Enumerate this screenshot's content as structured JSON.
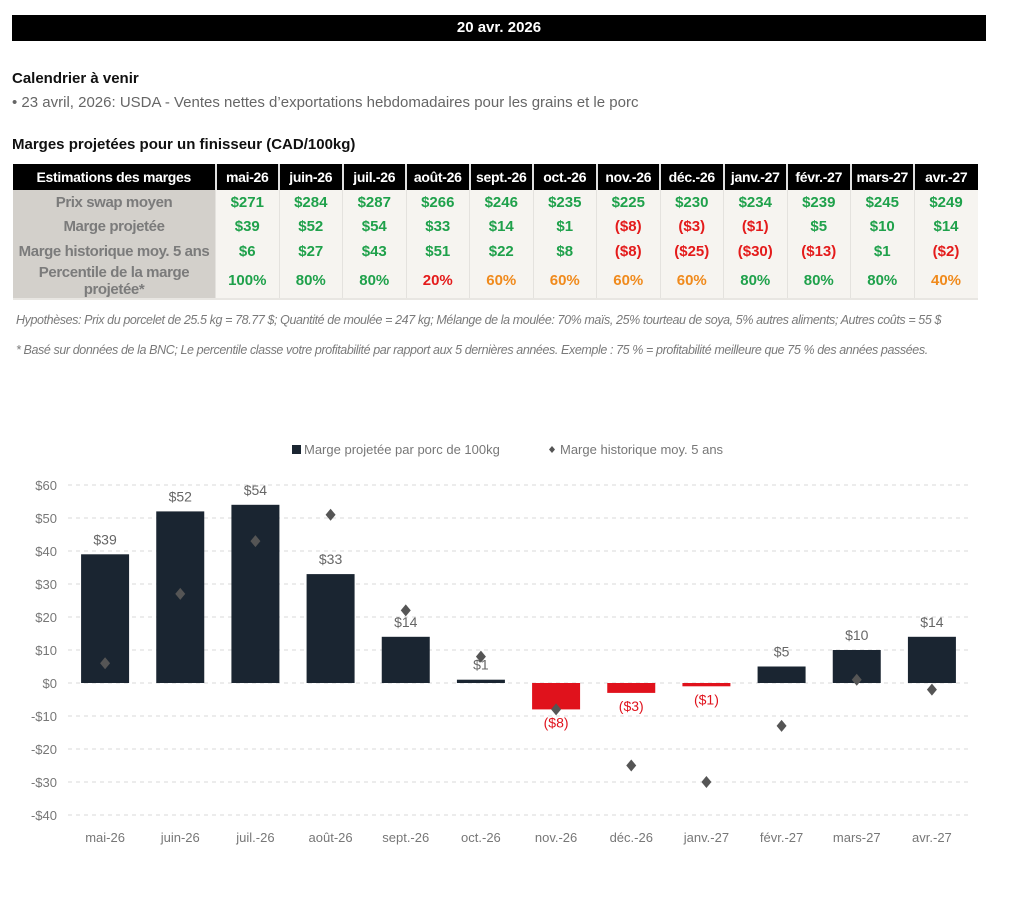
{
  "header": {
    "date": "20 avr. 2026"
  },
  "calendar": {
    "title": "Calendrier à venir",
    "items": [
      "• 23 avril, 2026: USDA - Ventes nettes d’exportations hebdomadaires pour les grains et le porc"
    ]
  },
  "table": {
    "title": "Marges projetées pour un finisseur (CAD/100kg)",
    "header_label": "Estimations des marges",
    "months": [
      "mai-26",
      "juin-26",
      "juil.-26",
      "août-26",
      "sept.-26",
      "oct.-26",
      "nov.-26",
      "déc.-26",
      "janv.-27",
      "févr.-27",
      "mars-27",
      "avr.-27"
    ],
    "rows": [
      {
        "label": "Prix swap moyen",
        "cells": [
          {
            "text": "$271",
            "color": "green"
          },
          {
            "text": "$284",
            "color": "green"
          },
          {
            "text": "$287",
            "color": "green"
          },
          {
            "text": "$266",
            "color": "green"
          },
          {
            "text": "$246",
            "color": "green"
          },
          {
            "text": "$235",
            "color": "green"
          },
          {
            "text": "$225",
            "color": "green"
          },
          {
            "text": "$230",
            "color": "green"
          },
          {
            "text": "$234",
            "color": "green"
          },
          {
            "text": "$239",
            "color": "green"
          },
          {
            "text": "$245",
            "color": "green"
          },
          {
            "text": "$249",
            "color": "green"
          }
        ]
      },
      {
        "label": "Marge projetée",
        "cells": [
          {
            "text": "$39",
            "color": "green"
          },
          {
            "text": "$52",
            "color": "green"
          },
          {
            "text": "$54",
            "color": "green"
          },
          {
            "text": "$33",
            "color": "green"
          },
          {
            "text": "$14",
            "color": "green"
          },
          {
            "text": "$1",
            "color": "green"
          },
          {
            "text": "($8)",
            "color": "red"
          },
          {
            "text": "($3)",
            "color": "red"
          },
          {
            "text": "($1)",
            "color": "red"
          },
          {
            "text": "$5",
            "color": "green"
          },
          {
            "text": "$10",
            "color": "green"
          },
          {
            "text": "$14",
            "color": "green"
          }
        ]
      },
      {
        "label": "Marge historique moy. 5 ans",
        "cells": [
          {
            "text": "$6",
            "color": "green"
          },
          {
            "text": "$27",
            "color": "green"
          },
          {
            "text": "$43",
            "color": "green"
          },
          {
            "text": "$51",
            "color": "green"
          },
          {
            "text": "$22",
            "color": "green"
          },
          {
            "text": "$8",
            "color": "green"
          },
          {
            "text": "($8)",
            "color": "red"
          },
          {
            "text": "($25)",
            "color": "red"
          },
          {
            "text": "($30)",
            "color": "red"
          },
          {
            "text": "($13)",
            "color": "red"
          },
          {
            "text": "$1",
            "color": "green"
          },
          {
            "text": "($2)",
            "color": "red"
          }
        ]
      },
      {
        "label": "Percentile de la marge projetée*",
        "cells": [
          {
            "text": "100%",
            "color": "green"
          },
          {
            "text": "80%",
            "color": "green"
          },
          {
            "text": "80%",
            "color": "green"
          },
          {
            "text": "20%",
            "color": "red"
          },
          {
            "text": "60%",
            "color": "orange"
          },
          {
            "text": "60%",
            "color": "orange"
          },
          {
            "text": "60%",
            "color": "orange"
          },
          {
            "text": "60%",
            "color": "orange"
          },
          {
            "text": "80%",
            "color": "green"
          },
          {
            "text": "80%",
            "color": "green"
          },
          {
            "text": "80%",
            "color": "green"
          },
          {
            "text": "40%",
            "color": "orange"
          }
        ]
      }
    ],
    "notes": [
      "Hypothèses: Prix du porcelet de 25.5 kg = 78.77 $; Quantité de moulée = 247 kg; Mélange de la moulée: 70% maïs, 25% tourteau de soya, 5% autres aliments; Autres coûts = 55 $",
      "* Basé sur données de la BNC; Le percentile classe votre profitabilité par rapport aux 5 dernières années. Exemple : 75 % = profitabilité meilleure que 75 % des années passées."
    ]
  },
  "colors": {
    "green": "#1fa14b",
    "red": "#e41b1b",
    "orange": "#f08a1c",
    "bar_positive": "#1a2531",
    "bar_negative": "#e0121c",
    "marker": "#555555"
  },
  "chart_data": {
    "type": "bar",
    "title": "",
    "xlabel": "",
    "ylabel": "",
    "ylim": [
      -40,
      60
    ],
    "yticks": [
      60,
      50,
      40,
      30,
      20,
      10,
      0,
      -10,
      -20,
      -30,
      -40
    ],
    "ytick_labels": [
      "$60",
      "$50",
      "$40",
      "$30",
      "$20",
      "$10",
      "$0",
      "-$10",
      "-$20",
      "-$30",
      "-$40"
    ],
    "grid": true,
    "legend_position": "top-center",
    "categories": [
      "mai-26",
      "juin-26",
      "juil.-26",
      "août-26",
      "sept.-26",
      "oct.-26",
      "nov.-26",
      "déc.-26",
      "janv.-27",
      "févr.-27",
      "mars-27",
      "avr.-27"
    ],
    "series": [
      {
        "name": "Marge projetée par porc de 100kg",
        "kind": "bar",
        "values": [
          39,
          52,
          54,
          33,
          14,
          1,
          -8,
          -3,
          -1,
          5,
          10,
          14
        ],
        "labels": [
          "$39",
          "$52",
          "$54",
          "$33",
          "$14",
          "$1",
          "($8)",
          "($3)",
          "($1)",
          "$5",
          "$10",
          "$14"
        ]
      },
      {
        "name": "Marge historique moy. 5 ans",
        "kind": "scatter",
        "marker": "diamond",
        "values": [
          6,
          27,
          43,
          51,
          22,
          8,
          -8,
          -25,
          -30,
          -13,
          1,
          -2
        ]
      }
    ]
  }
}
